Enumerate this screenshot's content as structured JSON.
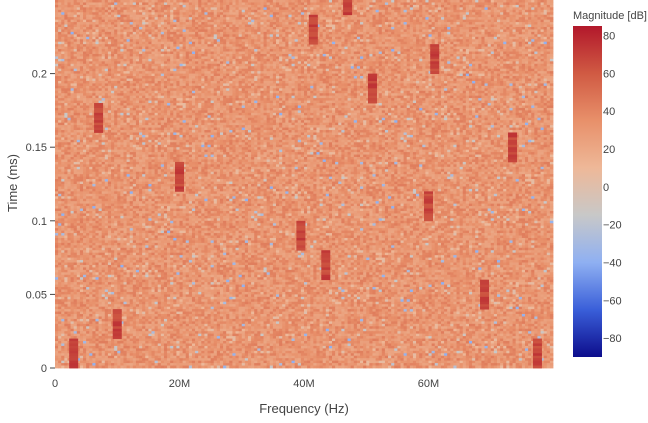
{
  "chart_data": {
    "type": "heatmap",
    "title": "",
    "xlabel": "Frequency (Hz)",
    "ylabel": "Time (ms)",
    "xlim": [
      0,
      80000000
    ],
    "ylim": [
      0,
      0.25
    ],
    "x_ticks": [
      {
        "value": 0,
        "label": "0"
      },
      {
        "value": 20000000,
        "label": "20M"
      },
      {
        "value": 40000000,
        "label": "40M"
      },
      {
        "value": 60000000,
        "label": "60M"
      }
    ],
    "y_ticks": [
      {
        "value": 0,
        "label": "0"
      },
      {
        "value": 0.05,
        "label": "0.05"
      },
      {
        "value": 0.1,
        "label": "0.1"
      },
      {
        "value": 0.15,
        "label": "0.15"
      },
      {
        "value": 0.2,
        "label": "0.2"
      }
    ],
    "colorbar": {
      "title": "Magnitude [dB]",
      "range": [
        -90,
        85
      ],
      "ticks": [
        {
          "value": 80,
          "label": "80"
        },
        {
          "value": 60,
          "label": "60"
        },
        {
          "value": 40,
          "label": "40"
        },
        {
          "value": 20,
          "label": "20"
        },
        {
          "value": 0,
          "label": "0"
        },
        {
          "value": -20,
          "label": "−20"
        },
        {
          "value": -40,
          "label": "−40"
        },
        {
          "value": -60,
          "label": "−60"
        },
        {
          "value": -80,
          "label": "−80"
        }
      ],
      "colorscale": [
        "#0d0d8c",
        "#3a5fd9",
        "#8fb0f2",
        "#c8c8c8",
        "#eeb898",
        "#e8906a",
        "#d05a43",
        "#b2182b"
      ]
    },
    "background_level_db": 32,
    "background_variation_db": 12,
    "signals": [
      {
        "frequency_hz": 3000000,
        "time_start_ms": -0.01,
        "time_end_ms": 0.02,
        "level_db": 75
      },
      {
        "frequency_hz": 7000000,
        "time_start_ms": 0.16,
        "time_end_ms": 0.18,
        "level_db": 75
      },
      {
        "frequency_hz": 10000000,
        "time_start_ms": 0.02,
        "time_end_ms": 0.04,
        "level_db": 75
      },
      {
        "frequency_hz": 20000000,
        "time_start_ms": 0.12,
        "time_end_ms": 0.14,
        "level_db": 75
      },
      {
        "frequency_hz": 39500000,
        "time_start_ms": 0.08,
        "time_end_ms": 0.1,
        "level_db": 75
      },
      {
        "frequency_hz": 41500000,
        "time_start_ms": 0.22,
        "time_end_ms": 0.24,
        "level_db": 75
      },
      {
        "frequency_hz": 43500000,
        "time_start_ms": 0.06,
        "time_end_ms": 0.08,
        "level_db": 75
      },
      {
        "frequency_hz": 47000000,
        "time_start_ms": 0.24,
        "time_end_ms": 0.26,
        "level_db": 75
      },
      {
        "frequency_hz": 51000000,
        "time_start_ms": 0.18,
        "time_end_ms": 0.2,
        "level_db": 75
      },
      {
        "frequency_hz": 60000000,
        "time_start_ms": 0.1,
        "time_end_ms": 0.12,
        "level_db": 75
      },
      {
        "frequency_hz": 61000000,
        "time_start_ms": 0.2,
        "time_end_ms": 0.22,
        "level_db": 75
      },
      {
        "frequency_hz": 69000000,
        "time_start_ms": 0.04,
        "time_end_ms": 0.06,
        "level_db": 75
      },
      {
        "frequency_hz": 73500000,
        "time_start_ms": 0.14,
        "time_end_ms": 0.16,
        "level_db": 75
      },
      {
        "frequency_hz": 77500000,
        "time_start_ms": 0.0,
        "time_end_ms": 0.02,
        "level_db": 75
      }
    ]
  }
}
